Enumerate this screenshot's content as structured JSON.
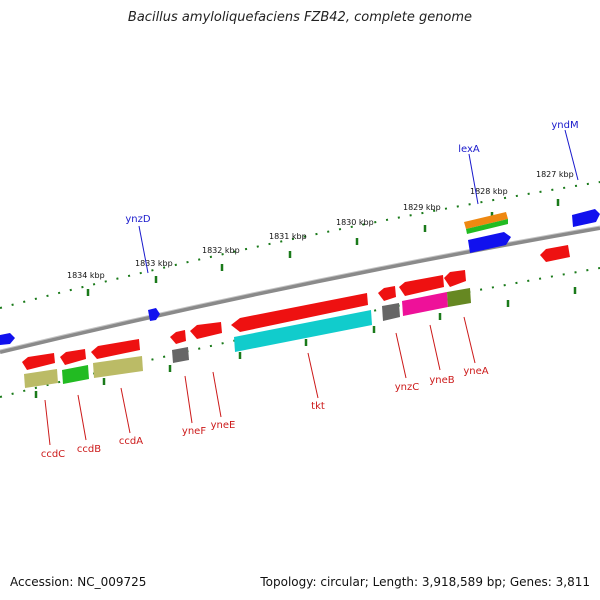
{
  "title": "Bacillus amyloliquefaciens FZB42, complete genome",
  "footer": {
    "accession": "Accession: NC_009725",
    "stats": "Topology: circular; Length: 3,918,589 bp; Genes: 3,811"
  },
  "ruler_labels": [
    "1834 kbp",
    "1833 kbp",
    "1832 kbp",
    "1831 kbp",
    "1830 kbp",
    "1829 kbp",
    "1828 kbp",
    "1827 kbp"
  ],
  "gene_labels": {
    "above": [
      "ynzD",
      "lexA",
      "yndM"
    ],
    "below": [
      "ccdC",
      "ccdB",
      "ccdA",
      "yneF",
      "yneE",
      "tkt",
      "ynzC",
      "yneB",
      "yneA"
    ]
  },
  "colors": {
    "backbone": "#7a7a7a",
    "ruler": "#1a7a1a",
    "label_above": "#1a1acc",
    "label_below": "#cc1a1a",
    "red": "#ee1111",
    "blue": "#1111ee",
    "cyan": "#11cccc",
    "green": "#22bb22",
    "khaki": "#bbbb66",
    "olive": "#668822",
    "grey": "#666666",
    "magenta": "#ee1199",
    "orange": "#ee8811"
  }
}
